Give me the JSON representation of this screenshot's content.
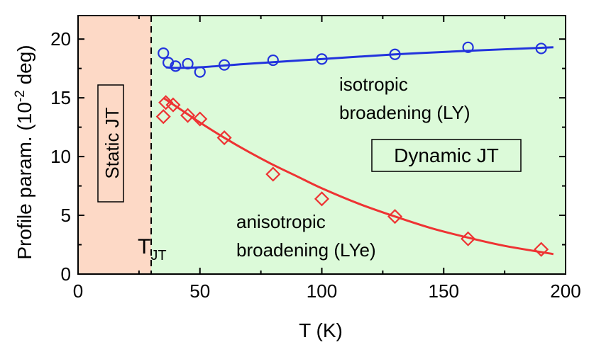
{
  "chart_data": {
    "type": "scatter",
    "xlabel": "T (K)",
    "ylabel_main": "Profile param. (10",
    "ylabel_sup": "-2",
    "ylabel_tail": " deg)",
    "xlim": [
      0,
      200
    ],
    "ylim": [
      0,
      22
    ],
    "x_ticks": [
      0,
      50,
      100,
      150,
      200
    ],
    "y_ticks": [
      0,
      5,
      10,
      15,
      20
    ],
    "regions": [
      {
        "name": "static",
        "x_range": [
          0,
          30
        ],
        "color": "#fdd9c6"
      },
      {
        "name": "dynamic",
        "x_range": [
          30,
          200
        ],
        "color": "#dcfad9"
      }
    ],
    "tjt_x": 30,
    "series": [
      {
        "color": "#2233dd",
        "marker": "circle",
        "points": [
          [
            35,
            18.8
          ],
          [
            37,
            18.0
          ],
          [
            40,
            17.7
          ],
          [
            45,
            17.9
          ],
          [
            50,
            17.2
          ],
          [
            60,
            17.8
          ],
          [
            80,
            18.2
          ],
          [
            100,
            18.3
          ],
          [
            130,
            18.7
          ],
          [
            160,
            19.3
          ],
          [
            190,
            19.2
          ]
        ],
        "fit": [
          [
            36,
            17.6
          ],
          [
            40,
            17.55
          ],
          [
            50,
            17.6
          ],
          [
            70,
            17.9
          ],
          [
            100,
            18.3
          ],
          [
            130,
            18.7
          ],
          [
            160,
            19.0
          ],
          [
            195,
            19.3
          ]
        ]
      },
      {
        "color": "#ee3333",
        "marker": "diamond",
        "points": [
          [
            35,
            13.4
          ],
          [
            36,
            14.6
          ],
          [
            39,
            14.4
          ],
          [
            45,
            13.5
          ],
          [
            50,
            13.2
          ],
          [
            60,
            11.6
          ],
          [
            80,
            8.5
          ],
          [
            100,
            6.4
          ],
          [
            130,
            4.9
          ],
          [
            160,
            3.0
          ],
          [
            190,
            2.1
          ]
        ],
        "fit": [
          [
            35,
            15.0
          ],
          [
            40,
            14.3
          ],
          [
            45,
            13.6
          ],
          [
            50,
            12.9
          ],
          [
            60,
            11.6
          ],
          [
            70,
            10.4
          ],
          [
            80,
            9.3
          ],
          [
            90,
            8.3
          ],
          [
            100,
            7.3
          ],
          [
            115,
            6.0
          ],
          [
            130,
            4.9
          ],
          [
            145,
            3.9
          ],
          [
            160,
            3.1
          ],
          [
            175,
            2.4
          ],
          [
            195,
            1.7
          ]
        ]
      }
    ],
    "annotations": {
      "static_label": "Static JT",
      "dynamic_label": "Dynamic JT",
      "iso_line1": "isotropic",
      "iso_line2": "broadening (LY)",
      "aniso_line1": "anisotropic",
      "aniso_line2": "broadening (LYe)",
      "tjt_main": "T",
      "tjt_sub": "JT"
    }
  }
}
